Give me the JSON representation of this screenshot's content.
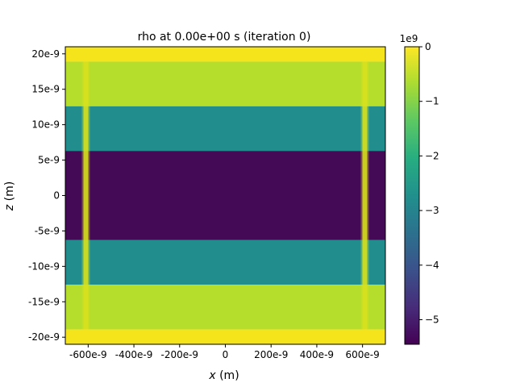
{
  "chart_data": {
    "type": "heatmap",
    "title": "rho at 0.00e+00 s   (iteration 0)",
    "xlabel": "x (m)",
    "ylabel": "z (m)",
    "xlabel_parts": {
      "var": "x",
      "unit": "(m)"
    },
    "ylabel_parts": {
      "var": "z",
      "unit": "(m)"
    },
    "xlim": [
      -7e-07,
      7e-07
    ],
    "ylim": [
      -2.1e-08,
      2.1e-08
    ],
    "x_ticks": [
      {
        "value": -6e-07,
        "label": "-600e-9"
      },
      {
        "value": -4e-07,
        "label": "-400e-9"
      },
      {
        "value": -2e-07,
        "label": "-200e-9"
      },
      {
        "value": 0,
        "label": "0"
      },
      {
        "value": 2e-07,
        "label": "200e-9"
      },
      {
        "value": 4e-07,
        "label": "400e-9"
      },
      {
        "value": 6e-07,
        "label": "600e-9"
      }
    ],
    "y_ticks": [
      {
        "value": 2e-08,
        "label": "20e-9"
      },
      {
        "value": 1.5e-08,
        "label": "15e-9"
      },
      {
        "value": 1e-08,
        "label": "10e-9"
      },
      {
        "value": 5e-09,
        "label": "5e-9"
      },
      {
        "value": 0,
        "label": "0"
      },
      {
        "value": -5e-09,
        "label": "-5e-9"
      },
      {
        "value": -1e-08,
        "label": "-10e-9"
      },
      {
        "value": -1.5e-08,
        "label": "-15e-9"
      },
      {
        "value": -2e-08,
        "label": "-20e-9"
      }
    ],
    "bands": [
      {
        "z_min": 1.89e-08,
        "z_max": 2.1e-08,
        "value": 0.0,
        "color": "#f5e41c"
      },
      {
        "z_min": 1.26e-08,
        "z_max": 1.89e-08,
        "value": -600000000.0,
        "color": "#b4dd2c"
      },
      {
        "z_min": 6.3e-09,
        "z_max": 1.26e-08,
        "value": -3100000000.0,
        "color": "#218e8d"
      },
      {
        "z_min": -6.3e-09,
        "z_max": 6.3e-09,
        "value": -5450000000.0,
        "color": "#450a55"
      },
      {
        "z_min": -1.26e-08,
        "z_max": -6.3e-09,
        "value": -3100000000.0,
        "color": "#218e8d"
      },
      {
        "z_min": -1.89e-08,
        "z_max": -1.26e-08,
        "value": -600000000.0,
        "color": "#b4dd2c"
      },
      {
        "z_min": -2.1e-08,
        "z_max": -1.89e-08,
        "value": 0.0,
        "color": "#f5e41c"
      }
    ],
    "vertical_stripes": [
      {
        "x_center": -6.1e-07,
        "color": "#d8e21e"
      },
      {
        "x_center": 6.1e-07,
        "color": "#d8e21e"
      }
    ],
    "colorbar": {
      "min": -5.45,
      "max": 0,
      "multiplier": "1e9",
      "ticks": [
        {
          "value": 0,
          "label": "0"
        },
        {
          "value": -1,
          "label": "−1"
        },
        {
          "value": -2,
          "label": "−2"
        },
        {
          "value": -3,
          "label": "−3"
        },
        {
          "value": -4,
          "label": "−4"
        },
        {
          "value": -5,
          "label": "−5"
        }
      ],
      "colormap": "viridis",
      "stops": [
        "#440154",
        "#472c7a",
        "#3b518b",
        "#2c718e",
        "#21908d",
        "#27ad81",
        "#5cc863",
        "#aadc32",
        "#fde725"
      ]
    }
  }
}
